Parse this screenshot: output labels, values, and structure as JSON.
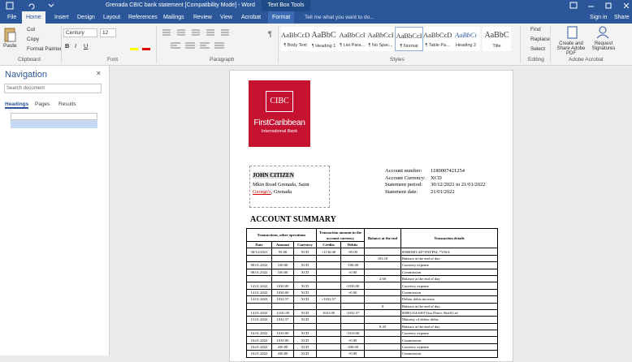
{
  "title_bar": {
    "document_title": "Grenada CBIC bank statement [Compatibility Mode] - Word",
    "contextual_tab": "Text Box Tools",
    "sign_in": "Sign in",
    "share": "Share"
  },
  "tabs": [
    "File",
    "Home",
    "Insert",
    "Design",
    "Layout",
    "References",
    "Mailings",
    "Review",
    "View",
    "Acrobat",
    "Format"
  ],
  "tell_me": "Tell me what you want to do...",
  "ribbon": {
    "clipboard": {
      "paste": "Paste",
      "cut": "Cut",
      "copy": "Copy",
      "format_painter": "Format Painter",
      "label": "Clipboard"
    },
    "font": {
      "name": "Century",
      "size": "12",
      "buttons": [
        "B",
        "I",
        "U"
      ],
      "label": "Font"
    },
    "paragraph": {
      "label": "Paragraph"
    },
    "styles": {
      "items": [
        {
          "preview": "AaBbCcDc",
          "name": "¶ Body Text"
        },
        {
          "preview": "AaBbC",
          "name": "¶ Heading 1"
        },
        {
          "preview": "AaBbCcI",
          "name": "¶ List Para..."
        },
        {
          "preview": "AaBbCcI",
          "name": "¶ No Spac..."
        },
        {
          "preview": "AaBbCcI",
          "name": "¶ Normal"
        },
        {
          "preview": "AaBbCcDc",
          "name": "¶ Table Pa..."
        },
        {
          "preview": "AaBbCı",
          "name": "Heading 2"
        },
        {
          "preview": "AaBbC",
          "name": "Title"
        }
      ],
      "label": "Styles"
    },
    "editing": {
      "find": "Find",
      "replace": "Replace",
      "select": "Select",
      "label": "Editing"
    },
    "acrobat": {
      "create": "Create and Share Adobe PDF",
      "request": "Request Signatures",
      "label": "Adobe Acrobat"
    }
  },
  "navigation": {
    "title": "Navigation",
    "search_placeholder": "Search document",
    "tabs": [
      "Headings",
      "Pages",
      "Results"
    ]
  },
  "document": {
    "logo": {
      "brand": "CIBC",
      "name": "FirstCaribbean",
      "subtitle": "International Bank"
    },
    "customer": {
      "name": "JOHN CITIZEN",
      "address_line1": "Mkin Road Grenada, Saint",
      "address_link": "George's",
      "address_rest": ", Grenada"
    },
    "account_info": [
      {
        "label": "Account number:",
        "value": "1180007421254"
      },
      {
        "label": "Account Currency:",
        "value": "XCD"
      },
      {
        "label": "Statement period:",
        "value": "30/12/2021 to 21/01/2022"
      },
      {
        "label": "Statement date:",
        "value": "21/01/2022"
      }
    ],
    "summary_title": "ACCOUNT SUMMARY",
    "table": {
      "group_headers": [
        "Transactions, other operations",
        "Transaction amount in the account currency",
        "Balance at the end",
        "Transaction details"
      ],
      "sub_headers": [
        "Date",
        "Amount",
        "Currency",
        "Credits",
        "Debits"
      ],
      "rows": [
        [
          "30/12/2021",
          "95.00",
          "XCD",
          "+1136.00",
          "-95.00",
          null,
          "00000001:447-PAYPAL *VISA"
        ],
        [
          null,
          null,
          null,
          null,
          null,
          "103.10",
          "Balance at the end of day"
        ],
        [
          "08.01.2022",
          "100.00",
          "XCD",
          null,
          "-100.00",
          null,
          "Currency expense"
        ],
        [
          "08.01.2022",
          "100.00",
          "XCD",
          null,
          "+0.00",
          null,
          "Commission"
        ],
        [
          null,
          null,
          null,
          null,
          null,
          "2.60",
          "Balance at the end of day"
        ],
        [
          "14.01.2022",
          "1030.00",
          "XCD",
          null,
          "-1030.00",
          null,
          "Currency expense"
        ],
        [
          "14.01.2022",
          "1030.00",
          "XCD",
          null,
          "+0.00",
          null,
          "Commission"
        ],
        [
          "14.01.2022",
          "1032.57",
          "XCD",
          "+1032.57",
          null,
          null,
          "Debtor debts increase"
        ],
        [
          null,
          null,
          null,
          null,
          null,
          "0",
          "Balance at the end of day"
        ],
        [
          "14.01.2022",
          "1,041.00",
          "XCD",
          "1041.00",
          "-1032.57",
          null,
          "00001414:6301Visa Direct Skrill Ltd"
        ],
        [
          "15.01.2022",
          "1032.57",
          "XCD",
          null,
          null,
          null,
          "Maturity of debtor debts"
        ],
        [
          null,
          null,
          null,
          null,
          null,
          "8.43",
          "Balance at the end of day"
        ],
        [
          "16.01.2022",
          "1010.00",
          "XCD",
          null,
          "-1010.00",
          null,
          "Currency expense"
        ],
        [
          "16.01.2022",
          "1010.00",
          "XCD",
          null,
          "+0.00",
          null,
          "Commission"
        ],
        [
          "16.01.2022",
          "430.00",
          "XCD",
          null,
          "-430.00",
          null,
          "Currency expense"
        ],
        [
          "16.01.2022",
          "430.00",
          "XCD",
          null,
          "+0.00",
          null,
          "Commission"
        ]
      ]
    }
  }
}
